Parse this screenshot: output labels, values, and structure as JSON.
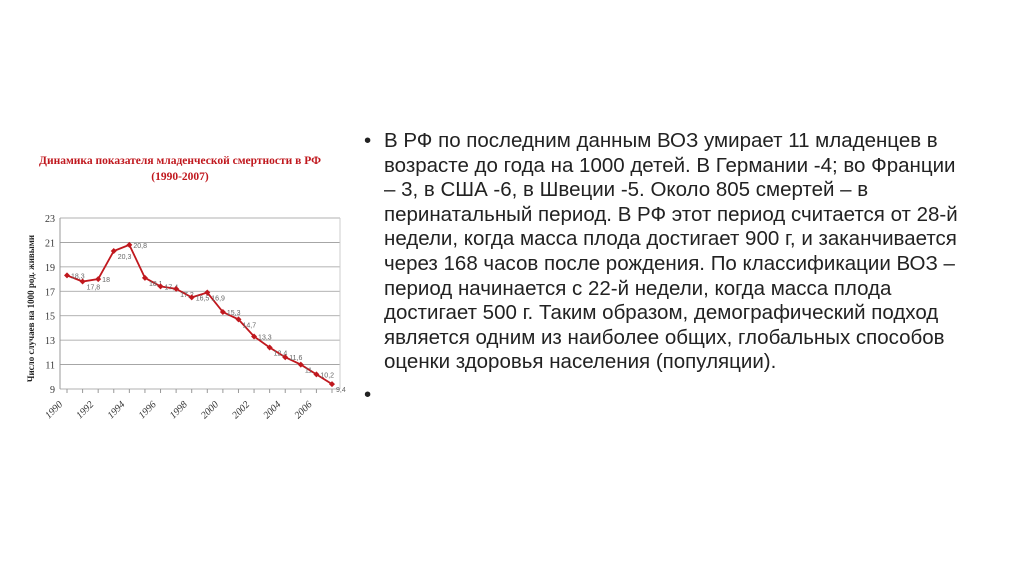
{
  "chart_data": {
    "type": "line",
    "title": "Динамика показателя младенческой смертности в РФ",
    "subtitle": "(1990-2007)",
    "ylabel": "Число случаев на 1000 род. живыми",
    "xlabel": "",
    "x": [
      1990,
      1991,
      1992,
      1993,
      1994,
      1995,
      1996,
      1997,
      1998,
      1999,
      2000,
      2001,
      2002,
      2003,
      2004,
      2005,
      2006,
      2007
    ],
    "values": [
      18.3,
      17.8,
      18,
      20.3,
      20.8,
      18.1,
      17.4,
      17.2,
      16.5,
      16.9,
      15.3,
      14.7,
      13.3,
      12.4,
      11.6,
      11,
      10.2,
      9.4
    ],
    "data_labels": [
      "18,3",
      "17,8",
      "18",
      "20,3",
      "20,8",
      "18,1",
      "17,4",
      "17,2",
      "16,5",
      "16,9",
      "15,3",
      "14,7",
      "13,3",
      "12,4",
      "11,6",
      "11",
      "10,2",
      "9,4"
    ],
    "x_tick_labels": [
      "1990",
      "1992",
      "1994",
      "1996",
      "1998",
      "2000",
      "2002",
      "2004",
      "2006"
    ],
    "y_ticks": [
      9,
      11,
      13,
      15,
      17,
      19,
      21,
      23
    ],
    "ylim": [
      9,
      23
    ],
    "grid": true,
    "line_color": "#c0181e"
  },
  "bullets": [
    "В РФ по последним данным ВОЗ умирает 11 младенцев в возрасте до года на 1000 детей. В Германии -4; во Франции – 3, в США -6, в Швеции -5. Около 805 смертей – в перинатальный период. В РФ этот период считается от 28-й недели, когда масса плода достигает 900 г, и заканчивается через 168 часов после рождения. По классификации ВОЗ – период начинается с 22-й недели, когда масса плода достигает 500 г. Таким образом, демографический подход является одним из наиболее общих, глобальных способов оценки здоровья населения (популяции).",
    ""
  ],
  "bullet_char": "•"
}
